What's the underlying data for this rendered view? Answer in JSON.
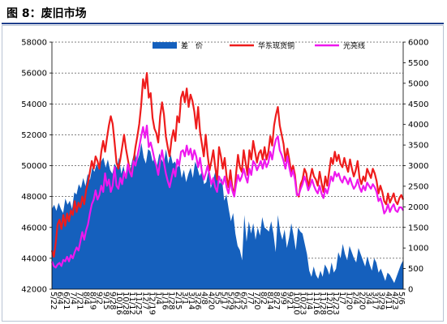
{
  "header": {
    "figure_label": "图 8：",
    "title": "废旧市场"
  },
  "watermark": "",
  "colors": {
    "spread": "#1560bd",
    "east_china_copper": "#ee1c1c",
    "bright_copper_wire": "#ee18ee",
    "title_rule": "#1f3f8c"
  },
  "chart_data": {
    "type": "area",
    "title": "废旧市场",
    "left_axis": {
      "ylim": [
        42000,
        58000
      ],
      "ticks": [
        42000,
        44000,
        46000,
        48000,
        50000,
        52000,
        54000,
        56000,
        58000
      ]
    },
    "right_axis": {
      "ylim": [
        0,
        6000
      ],
      "ticks": [
        0,
        500,
        1000,
        1500,
        2000,
        2500,
        3000,
        3500,
        4000,
        4500,
        5000,
        5500,
        6000
      ]
    },
    "x_tick_labels": [
      "5/22",
      "6/4",
      "6/21",
      "7/4",
      "7/21",
      "8/4",
      "8/19",
      "9/2",
      "9/15",
      "9/28",
      "10/16",
      "10/28",
      "11/12",
      "11/25",
      "12/7",
      "12/19",
      "1/4",
      "1/16",
      "1/28",
      "2/15",
      "3/1",
      "3/14",
      "3/26",
      "4/8",
      "4/20",
      "5/5",
      "5/17",
      "5/29",
      "6/12",
      "6/25",
      "7/7",
      "7/20",
      "8/2",
      "8/14",
      "8/27",
      "9/9",
      "9/21",
      "10/10",
      "10/23",
      "11/4",
      "11/16",
      "11/28",
      "12/10",
      "12/23",
      "1/7",
      "1/20",
      "2/4",
      "2/20",
      "3/4",
      "3/17",
      "3/29",
      "4/11",
      "4/23",
      "5/6"
    ],
    "legend_position": "top",
    "series": [
      {
        "name": "差　价",
        "type": "area",
        "axis": "right",
        "values": [
          1950,
          2050,
          1900,
          2100,
          1950,
          1850,
          2200,
          2050,
          2150,
          1950,
          2350,
          2300,
          2550,
          2450,
          2700,
          2500,
          2800,
          2650,
          2950,
          2850,
          3050,
          2900,
          3100,
          3200,
          2950,
          3150,
          2900,
          2800,
          3050,
          2950,
          3200,
          2800,
          3000,
          2700,
          3050,
          2900,
          3150,
          3350,
          3100,
          3250,
          3550,
          3200,
          3050,
          3400,
          3350,
          3100,
          3200,
          3000,
          3300,
          3150,
          3050,
          3400,
          3050,
          3300,
          3050,
          3100,
          2950,
          3050,
          2700,
          2900,
          2600,
          2800,
          2950,
          2700,
          3100,
          2950,
          2750,
          2850,
          2550,
          2600,
          2900,
          2450,
          2650,
          2850,
          2900,
          2550,
          2700,
          2150,
          2300,
          1950,
          1650,
          1850,
          1350,
          1050,
          950,
          700,
          1800,
          1150,
          1650,
          1350,
          1600,
          1200,
          1500,
          1300,
          1750,
          1500,
          1450,
          1400,
          1650,
          1350,
          900,
          1800,
          1400,
          1200,
          1450,
          1000,
          1250,
          1600,
          1300,
          950,
          1500,
          1400,
          1350,
          1100,
          850,
          450,
          300,
          550,
          350,
          250,
          450,
          300,
          600,
          500,
          350,
          650,
          400,
          500,
          900,
          750,
          1100,
          850,
          700,
          1050,
          900,
          750,
          650,
          1000,
          850,
          700,
          550,
          800,
          600,
          450,
          750,
          650,
          400,
          500,
          350,
          200,
          400,
          350,
          250,
          150,
          300,
          450,
          600,
          700
        ]
      },
      {
        "name": "华东现货铜",
        "type": "line",
        "axis": "left",
        "values": [
          44500,
          44100,
          45000,
          46200,
          46500,
          45900,
          46800,
          46100,
          46900,
          46400,
          47100,
          46800,
          47700,
          47000,
          47600,
          47300,
          48000,
          47500,
          48400,
          48900,
          49600,
          50300,
          49800,
          50600,
          50300,
          49800,
          50900,
          51600,
          50900,
          51800,
          52600,
          53200,
          52700,
          51500,
          50200,
          49800,
          50400,
          51200,
          52000,
          51100,
          50400,
          49700,
          49300,
          50300,
          51200,
          51900,
          52700,
          53900,
          55600,
          55000,
          56000,
          54400,
          54700,
          53100,
          52400,
          52100,
          51500,
          53200,
          54100,
          53300,
          51900,
          51200,
          50600,
          51700,
          52300,
          51600,
          53200,
          52800,
          54400,
          54800,
          54100,
          55000,
          53800,
          54600,
          54200,
          53500,
          52400,
          53800,
          52200,
          51400,
          50600,
          52000,
          50700,
          49700,
          50300,
          51000,
          49900,
          49100,
          51200,
          50600,
          49800,
          50500,
          49300,
          48600,
          49700,
          48600,
          48100,
          49500,
          50700,
          49900,
          49600,
          51000,
          50200,
          49400,
          51000,
          50400,
          51600,
          50900,
          50200,
          50800,
          51000,
          50400,
          51200,
          50400,
          50900,
          51900,
          51300,
          52600,
          53300,
          53800,
          52600,
          52000,
          51400,
          50300,
          51100,
          50400,
          49600,
          50000,
          49400,
          48200,
          48000,
          48800,
          49100,
          49800,
          49500,
          48600,
          49200,
          49800,
          49300,
          49100,
          48700,
          49600,
          48900,
          48300,
          49300,
          48700,
          49600,
          50500,
          50100,
          50900,
          50300,
          50700,
          50100,
          49900,
          50500,
          50000,
          49600,
          50400,
          49800,
          49300,
          49700,
          50300,
          49200,
          48800,
          49300,
          49000,
          49800,
          49500,
          49200,
          49800,
          49500,
          49000,
          48200,
          48700,
          48300,
          47700,
          47500,
          48200,
          47600,
          47900,
          48200,
          47700,
          47500,
          47900,
          48100,
          47800
        ]
      },
      {
        "name": "光亮线",
        "type": "line",
        "axis": "left",
        "values": [
          43800,
          43500,
          43400,
          43600,
          43700,
          43500,
          43900,
          43800,
          44100,
          43800,
          44200,
          44000,
          44400,
          44700,
          44500,
          45100,
          45700,
          45200,
          45800,
          46200,
          46900,
          47500,
          47800,
          48400,
          47800,
          48100,
          48700,
          48300,
          49500,
          48700,
          49100,
          48300,
          48700,
          49900,
          48700,
          48500,
          49200,
          48800,
          49600,
          49200,
          50100,
          49600,
          49300,
          50300,
          50000,
          50600,
          51200,
          51900,
          52500,
          51800,
          52600,
          51200,
          51500,
          51000,
          50400,
          50000,
          49400,
          50300,
          51000,
          50200,
          49500,
          49000,
          48600,
          49200,
          49800,
          49300,
          50400,
          50000,
          50900,
          51000,
          50600,
          51300,
          50700,
          51100,
          50400,
          51000,
          50600,
          49900,
          50500,
          49600,
          49100,
          49500,
          50000,
          49400,
          48800,
          49200,
          48600,
          48300,
          49300,
          49000,
          48800,
          49300,
          48600,
          48200,
          49000,
          48400,
          48000,
          48800,
          49400,
          49000,
          49300,
          49800,
          49300,
          48900,
          49800,
          49400,
          50300,
          50100,
          49700,
          50000,
          50300,
          49800,
          50400,
          49900,
          50200,
          50900,
          50400,
          51200,
          51700,
          51900,
          51000,
          50700,
          50300,
          49800,
          50600,
          49900,
          49300,
          49700,
          49100,
          48100,
          48100,
          48500,
          48800,
          49300,
          48900,
          48400,
          48700,
          49100,
          48700,
          48400,
          48200,
          48700,
          48200,
          47900,
          48500,
          48200,
          48700,
          49300,
          49000,
          49600,
          49300,
          49500,
          49100,
          48900,
          49300,
          49100,
          48800,
          49200,
          48800,
          48500,
          48700,
          49100,
          48600,
          48300,
          48700,
          48400,
          48900,
          48700,
          48500,
          48800,
          48600,
          48300,
          47700,
          47900,
          47500,
          46900,
          47100,
          47500,
          47000,
          47300,
          47500,
          47100,
          47000,
          47300,
          47300,
          47100
        ]
      }
    ]
  }
}
